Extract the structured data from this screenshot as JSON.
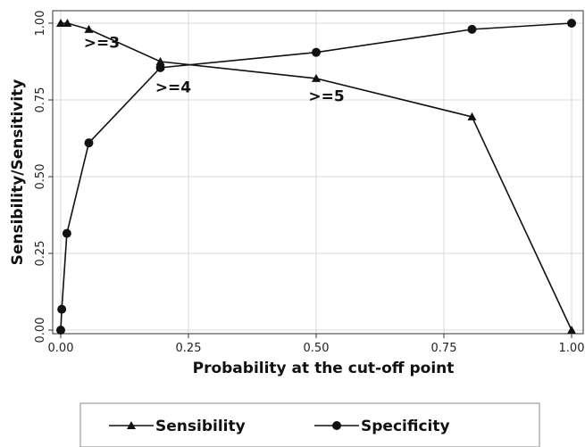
{
  "chart_data": {
    "type": "line",
    "xlabel": "Probability at the cut-off point",
    "ylabel": "Sensibility/Sensitivity",
    "xlim": [
      0,
      1
    ],
    "ylim": [
      0,
      1
    ],
    "xticks": [
      "0.00",
      "0.25",
      "0.50",
      "0.75",
      "1.00"
    ],
    "yticks": [
      "0.00",
      "0.25",
      "0.50",
      "0.75",
      "1.00"
    ],
    "grid": true,
    "legend_position": "bottom",
    "series": [
      {
        "name": "Sensibility",
        "marker": "triangle",
        "points": [
          [
            0.0,
            1.0
          ],
          [
            0.013,
            1.0
          ],
          [
            0.055,
            0.98
          ],
          [
            0.195,
            0.875
          ],
          [
            0.5,
            0.82
          ],
          [
            0.805,
            0.695
          ],
          [
            1.0,
            0.0
          ]
        ]
      },
      {
        "name": "Specificity",
        "marker": "circle",
        "points": [
          [
            0.0,
            0.0
          ],
          [
            0.002,
            0.068
          ],
          [
            0.012,
            0.315
          ],
          [
            0.055,
            0.61
          ],
          [
            0.195,
            0.855
          ],
          [
            0.5,
            0.905
          ],
          [
            0.805,
            0.98
          ],
          [
            1.0,
            1.0
          ]
        ]
      }
    ],
    "annotations": [
      {
        "text": ">=3",
        "x": 0.045,
        "y": 0.92
      },
      {
        "text": ">=4",
        "x": 0.185,
        "y": 0.775
      },
      {
        "text": ">=5",
        "x": 0.485,
        "y": 0.745
      }
    ]
  }
}
